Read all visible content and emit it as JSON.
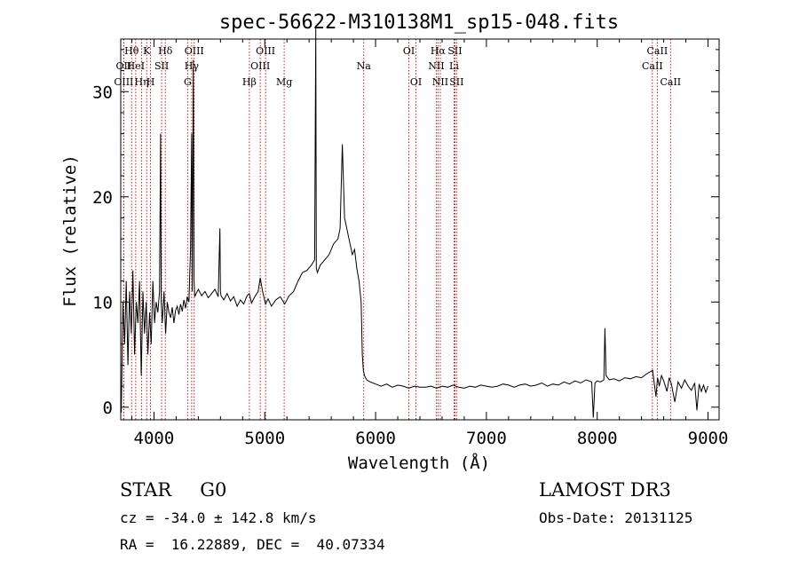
{
  "chart_data": {
    "type": "line",
    "title": "spec-56622-M310138M1_sp15-048.fits",
    "xlabel": "Wavelength (Å)",
    "ylabel": "Flux (relative)",
    "xlim": [
      3700,
      9100
    ],
    "ylim": [
      -1.2,
      35
    ],
    "xticks": [
      4000,
      5000,
      6000,
      7000,
      8000,
      9000
    ],
    "yticks": [
      0,
      10,
      20,
      30
    ],
    "series": [
      {
        "color": "#000000",
        "x": [
          3705,
          3720,
          3735,
          3750,
          3765,
          3780,
          3795,
          3810,
          3825,
          3840,
          3855,
          3870,
          3885,
          3900,
          3915,
          3930,
          3945,
          3960,
          3975,
          3990,
          4005,
          4020,
          4035,
          4050,
          4060,
          4065,
          4075,
          4090,
          4105,
          4120,
          4135,
          4150,
          4165,
          4180,
          4195,
          4210,
          4225,
          4240,
          4255,
          4270,
          4285,
          4300,
          4315,
          4330,
          4340,
          4345,
          4355,
          4361,
          4368,
          4380,
          4400,
          4430,
          4460,
          4490,
          4520,
          4550,
          4580,
          4595,
          4600,
          4605,
          4630,
          4660,
          4690,
          4720,
          4750,
          4780,
          4810,
          4840,
          4861,
          4880,
          4910,
          4940,
          4959,
          4980,
          5007,
          5030,
          5060,
          5100,
          5140,
          5180,
          5220,
          5260,
          5300,
          5340,
          5380,
          5420,
          5450,
          5460,
          5465,
          5475,
          5500,
          5540,
          5580,
          5620,
          5660,
          5680,
          5700,
          5720,
          5760,
          5790,
          5810,
          5830,
          5850,
          5870,
          5880,
          5890,
          5900,
          5920,
          5950,
          6000,
          6050,
          6100,
          6150,
          6200,
          6250,
          6300,
          6350,
          6400,
          6450,
          6500,
          6550,
          6600,
          6650,
          6700,
          6750,
          6800,
          6850,
          6900,
          6950,
          7000,
          7050,
          7100,
          7150,
          7200,
          7250,
          7300,
          7350,
          7400,
          7450,
          7500,
          7550,
          7600,
          7650,
          7700,
          7750,
          7800,
          7850,
          7900,
          7950,
          7965,
          7980,
          8000,
          8030,
          8060,
          8070,
          8080,
          8110,
          8150,
          8200,
          8250,
          8300,
          8350,
          8400,
          8450,
          8500,
          8530,
          8545,
          8560,
          8580,
          8600,
          8630,
          8650,
          8670,
          8700,
          8730,
          8760,
          8790,
          8820,
          8850,
          8880,
          8900,
          8920,
          8940,
          8960,
          8980,
          9000
        ],
        "y": [
          -0.5,
          10,
          6,
          12,
          4,
          11,
          7,
          13,
          5,
          10,
          8,
          12,
          3,
          11,
          7,
          10,
          5,
          9,
          6,
          12,
          8,
          10,
          9,
          11,
          26,
          10,
          8,
          11,
          7,
          10,
          9,
          8.5,
          9.5,
          8,
          9.2,
          9.6,
          8.8,
          9.8,
          9.1,
          10.2,
          9.4,
          10.5,
          10,
          15,
          26,
          11,
          33,
          12,
          10.5,
          10.8,
          11.2,
          10.6,
          11,
          10.4,
          10.8,
          11.2,
          10.5,
          17,
          11,
          10.6,
          10.2,
          10.8,
          10.1,
          10.5,
          9.6,
          10.2,
          9.8,
          10.6,
          10.8,
          9.9,
          10.5,
          11,
          12.3,
          11,
          9.8,
          10.3,
          9.6,
          10.2,
          10.5,
          9.8,
          10.6,
          11,
          12,
          12.8,
          13,
          13.5,
          14,
          36,
          13.2,
          12.8,
          13.5,
          14,
          14.5,
          15.5,
          16,
          17,
          25,
          18,
          16,
          14.5,
          15,
          13.2,
          12,
          10,
          5,
          3.5,
          3,
          2.6,
          2.4,
          2.2,
          2.0,
          2.2,
          1.9,
          2.1,
          2.0,
          1.8,
          2.0,
          1.9,
          1.9,
          2.0,
          1.8,
          2.0,
          1.9,
          2.1,
          1.9,
          1.8,
          2.0,
          1.9,
          2.1,
          2.0,
          1.9,
          2.0,
          2.2,
          2.1,
          1.9,
          2.1,
          2.2,
          2.0,
          2.1,
          2.3,
          2.0,
          2.2,
          2.1,
          2.4,
          2.2,
          2.5,
          2.3,
          2.6,
          2.4,
          -1.0,
          2.3,
          2.5,
          2.4,
          2.6,
          7.5,
          3.0,
          2.6,
          2.7,
          2.5,
          2.8,
          2.7,
          2.9,
          2.8,
          3.2,
          3.5,
          1.0,
          2.8,
          2.0,
          3.0,
          2.5,
          1.5,
          2.8,
          2.2,
          0.5,
          2.4,
          1.8,
          2.6,
          2.0,
          1.6,
          2.3,
          -0.3,
          2.2,
          1.5,
          2.1,
          1.4,
          2.0
        ]
      }
    ],
    "line_labels": [
      {
        "text": "Hθ",
        "x": 3798,
        "row": 0
      },
      {
        "text": "OII",
        "x": 3727,
        "row": 1
      },
      {
        "text": "OIII",
        "x": 3727,
        "row": 2
      },
      {
        "text": "HeI",
        "x": 3835,
        "row": 1
      },
      {
        "text": "Hη",
        "x": 3889,
        "row": 2
      },
      {
        "text": "K",
        "x": 3934,
        "row": 0
      },
      {
        "text": "SII",
        "x": 4069,
        "row": 1
      },
      {
        "text": "H",
        "x": 3969,
        "row": 2
      },
      {
        "text": "Hδ",
        "x": 4102,
        "row": 0
      },
      {
        "text": "OIII",
        "x": 4363,
        "row": 0
      },
      {
        "text": "Hγ",
        "x": 4340,
        "row": 1
      },
      {
        "text": "G",
        "x": 4304,
        "row": 2
      },
      {
        "text": "OIII",
        "x": 5007,
        "row": 0
      },
      {
        "text": "OIII",
        "x": 4959,
        "row": 1
      },
      {
        "text": "Hβ",
        "x": 4861,
        "row": 2
      },
      {
        "text": "Mg",
        "x": 5175,
        "row": 2
      },
      {
        "text": "Na",
        "x": 5893,
        "row": 1
      },
      {
        "text": "OI",
        "x": 6300,
        "row": 0
      },
      {
        "text": "OI",
        "x": 6364,
        "row": 2
      },
      {
        "text": "Hα",
        "x": 6563,
        "row": 0
      },
      {
        "text": "SII",
        "x": 6716,
        "row": 0
      },
      {
        "text": "NII",
        "x": 6548,
        "row": 1
      },
      {
        "text": "Li",
        "x": 6708,
        "row": 1
      },
      {
        "text": "NII",
        "x": 6584,
        "row": 2
      },
      {
        "text": "SII",
        "x": 6731,
        "row": 2
      },
      {
        "text": "CaII",
        "x": 8542,
        "row": 0
      },
      {
        "text": "CaII",
        "x": 8498,
        "row": 1
      },
      {
        "text": "CaII",
        "x": 8662,
        "row": 2
      }
    ],
    "line_color": "#cc0000"
  },
  "footer": {
    "class_label": "STAR",
    "subclass": "G0",
    "survey": "LAMOST DR3",
    "cz": "cz = -34.0 ± 142.8 km/s",
    "obs_date": "Obs-Date: 20131125",
    "coords": "RA =  16.22889, DEC =  40.07334"
  }
}
